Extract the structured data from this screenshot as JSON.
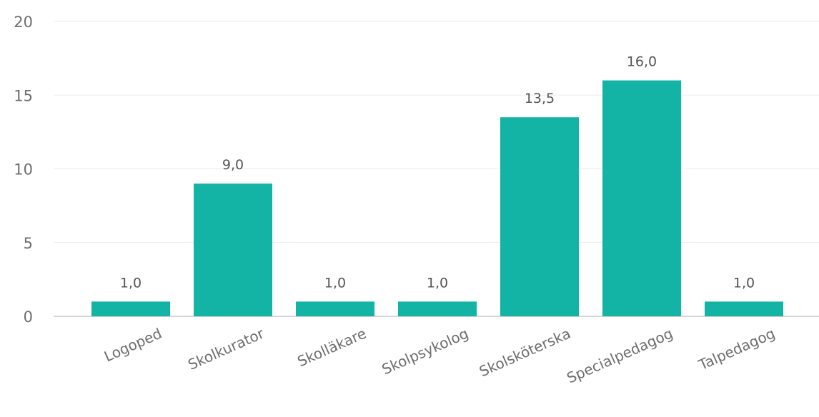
{
  "chart_data": {
    "type": "bar",
    "categories": [
      "Logoped",
      "Skolkurator",
      "Skolläkare",
      "Skolpsykolog",
      "Skolsköterska",
      "Specialpedagog",
      "Talpedagog"
    ],
    "values": [
      1.0,
      9.0,
      1.0,
      1.0,
      13.5,
      16.0,
      1.0
    ],
    "data_labels": [
      "1,0",
      "9,0",
      "1,0",
      "1,0",
      "13,5",
      "16,0",
      "1,0"
    ],
    "yticks": [
      0,
      5,
      10,
      15,
      20
    ],
    "ylim": [
      0,
      20
    ],
    "grid": true,
    "bar_color": "#13b4a5",
    "title": "",
    "xlabel": "",
    "ylabel": ""
  }
}
